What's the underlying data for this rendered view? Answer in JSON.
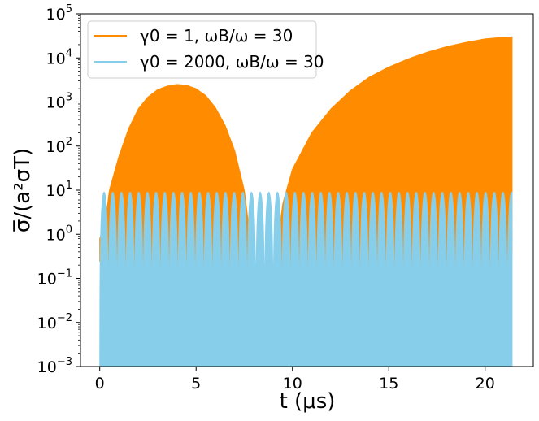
{
  "chart_data": {
    "type": "line",
    "xlabel": "t (μs)",
    "ylabel": "σ̅/(a²σT)",
    "xlim": [
      -1.0,
      22.5
    ],
    "ylim": [
      0.001,
      100000
    ],
    "yscale": "log",
    "grid": false,
    "legend_position": "top-left",
    "x_ticks": [
      0,
      5,
      10,
      15,
      20
    ],
    "x_tick_labels": [
      "0",
      "5",
      "10",
      "15",
      "20"
    ],
    "y_ticks": [
      0.001,
      0.01,
      0.1,
      1,
      10,
      100,
      1000,
      10000,
      100000
    ],
    "y_tick_labels": [
      {
        "base": "10",
        "exp": "−3"
      },
      {
        "base": "10",
        "exp": "−2"
      },
      {
        "base": "10",
        "exp": "−1"
      },
      {
        "base": "10",
        "exp": "0"
      },
      {
        "base": "10",
        "exp": "1"
      },
      {
        "base": "10",
        "exp": "2"
      },
      {
        "base": "10",
        "exp": "3"
      },
      {
        "base": "10",
        "exp": "4"
      },
      {
        "base": "10",
        "exp": "5"
      }
    ],
    "series": [
      {
        "name": "γ0 = 1, ωB/ω = 30",
        "color": "#ff8c00",
        "envelope_upper": [
          [
            0.0,
            0.8
          ],
          [
            0.3,
            2
          ],
          [
            0.5,
            10
          ],
          [
            1.0,
            60
          ],
          [
            1.5,
            250
          ],
          [
            2.0,
            700
          ],
          [
            2.5,
            1300
          ],
          [
            3.0,
            1900
          ],
          [
            3.5,
            2300
          ],
          [
            4.0,
            2500
          ],
          [
            4.5,
            2400
          ],
          [
            5.0,
            2000
          ],
          [
            5.5,
            1400
          ],
          [
            6.0,
            750
          ],
          [
            6.5,
            300
          ],
          [
            7.0,
            80
          ],
          [
            7.5,
            10
          ],
          [
            7.7,
            2
          ],
          [
            7.8,
            1
          ],
          [
            8.5,
            0.001
          ],
          [
            9.2,
            0.5
          ],
          [
            9.3,
            1
          ],
          [
            9.5,
            5
          ],
          [
            10.0,
            30
          ],
          [
            11.0,
            200
          ],
          [
            12.0,
            700
          ],
          [
            13.0,
            1800
          ],
          [
            14.0,
            3700
          ],
          [
            15.0,
            6200
          ],
          [
            16.0,
            9500
          ],
          [
            17.0,
            13500
          ],
          [
            18.0,
            18000
          ],
          [
            19.0,
            22500
          ],
          [
            20.0,
            27000
          ],
          [
            21.0,
            29500
          ],
          [
            21.4,
            30000
          ]
        ],
        "envelope_lower": 0.3,
        "x_range": [
          0.0,
          21.4
        ]
      },
      {
        "name": "γ0 = 2000, ωB/ω = 30",
        "color": "#87ceeb",
        "oscillation_peak": 9,
        "oscillation_period": 0.45,
        "x_range": [
          0.0,
          21.4
        ]
      }
    ]
  }
}
